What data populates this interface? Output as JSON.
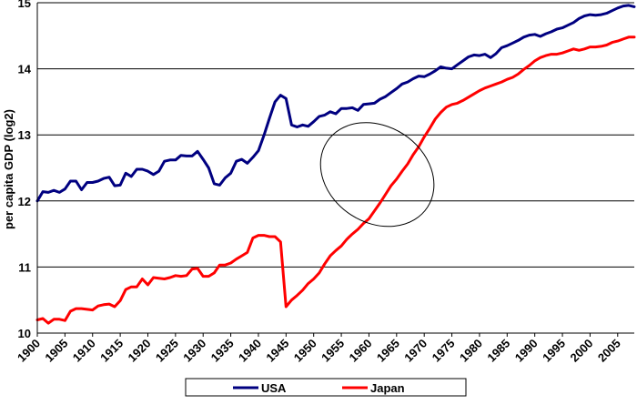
{
  "chart_data": {
    "type": "line",
    "title": "",
    "xlabel": "",
    "ylabel": "per capita GDP (log2)",
    "xlim": [
      1900,
      2008
    ],
    "ylim": [
      10,
      15
    ],
    "grid": true,
    "legend_position": "bottom",
    "x_ticks": [
      1900,
      1905,
      1910,
      1915,
      1920,
      1925,
      1930,
      1935,
      1940,
      1945,
      1950,
      1955,
      1960,
      1965,
      1970,
      1975,
      1980,
      1985,
      1990,
      1995,
      2000,
      2005
    ],
    "x_tick_labels": [
      "1900",
      "1905",
      "1910",
      "1915",
      "1920",
      "1925",
      "1930",
      "1935",
      "1940",
      "1945",
      "1950",
      "1955",
      "1960",
      "1965",
      "1970",
      "1975",
      "1980",
      "1985",
      "1990",
      "1995",
      "2000",
      "2005"
    ],
    "y_ticks": [
      10,
      11,
      12,
      13,
      14,
      15
    ],
    "y_tick_labels": [
      "10",
      "11",
      "12",
      "13",
      "14",
      "15"
    ],
    "series": [
      {
        "name": "USA",
        "color": "#000080",
        "x": [
          1900,
          1901,
          1902,
          1903,
          1904,
          1905,
          1906,
          1907,
          1908,
          1909,
          1910,
          1911,
          1912,
          1913,
          1914,
          1915,
          1916,
          1917,
          1918,
          1919,
          1920,
          1921,
          1922,
          1923,
          1924,
          1925,
          1926,
          1927,
          1928,
          1929,
          1930,
          1931,
          1932,
          1933,
          1934,
          1935,
          1936,
          1937,
          1938,
          1939,
          1940,
          1941,
          1942,
          1943,
          1944,
          1945,
          1946,
          1947,
          1948,
          1949,
          1950,
          1951,
          1952,
          1953,
          1954,
          1955,
          1956,
          1957,
          1958,
          1959,
          1960,
          1961,
          1962,
          1963,
          1964,
          1965,
          1966,
          1967,
          1968,
          1969,
          1970,
          1971,
          1972,
          1973,
          1974,
          1975,
          1976,
          1977,
          1978,
          1979,
          1980,
          1981,
          1982,
          1983,
          1984,
          1985,
          1986,
          1987,
          1988,
          1989,
          1990,
          1991,
          1992,
          1993,
          1994,
          1995,
          1996,
          1997,
          1998,
          1999,
          2000,
          2001,
          2002,
          2003,
          2004,
          2005,
          2006,
          2007,
          2008
        ],
        "values": [
          12.0,
          12.14,
          12.13,
          12.16,
          12.13,
          12.18,
          12.3,
          12.3,
          12.17,
          12.28,
          12.28,
          12.3,
          12.34,
          12.36,
          12.23,
          12.24,
          12.42,
          12.37,
          12.48,
          12.48,
          12.45,
          12.4,
          12.45,
          12.6,
          12.62,
          12.62,
          12.69,
          12.68,
          12.68,
          12.75,
          12.63,
          12.5,
          12.26,
          12.24,
          12.35,
          12.42,
          12.6,
          12.63,
          12.57,
          12.66,
          12.76,
          12.99,
          13.25,
          13.5,
          13.6,
          13.55,
          13.15,
          13.12,
          13.15,
          13.13,
          13.2,
          13.28,
          13.3,
          13.35,
          13.32,
          13.4,
          13.4,
          13.41,
          13.37,
          13.46,
          13.47,
          13.48,
          13.54,
          13.58,
          13.64,
          13.7,
          13.77,
          13.8,
          13.85,
          13.89,
          13.88,
          13.92,
          13.97,
          14.03,
          14.01,
          14.0,
          14.06,
          14.12,
          14.18,
          14.21,
          14.2,
          14.22,
          14.17,
          14.23,
          14.32,
          14.35,
          14.39,
          14.43,
          14.48,
          14.51,
          14.52,
          14.49,
          14.53,
          14.56,
          14.6,
          14.62,
          14.66,
          14.7,
          14.76,
          14.8,
          14.82,
          14.81,
          14.82,
          14.84,
          14.88,
          14.92,
          14.95,
          14.96,
          14.94
        ]
      },
      {
        "name": "Japan",
        "color": "#ff0000",
        "x": [
          1900,
          1901,
          1902,
          1903,
          1904,
          1905,
          1906,
          1907,
          1908,
          1909,
          1910,
          1911,
          1912,
          1913,
          1914,
          1915,
          1916,
          1917,
          1918,
          1919,
          1920,
          1921,
          1922,
          1923,
          1924,
          1925,
          1926,
          1927,
          1928,
          1929,
          1930,
          1931,
          1932,
          1933,
          1934,
          1935,
          1936,
          1937,
          1938,
          1939,
          1940,
          1941,
          1942,
          1943,
          1944,
          1945,
          1946,
          1947,
          1948,
          1949,
          1950,
          1951,
          1952,
          1953,
          1954,
          1955,
          1956,
          1957,
          1958,
          1959,
          1960,
          1961,
          1962,
          1963,
          1964,
          1965,
          1966,
          1967,
          1968,
          1969,
          1970,
          1971,
          1972,
          1973,
          1974,
          1975,
          1976,
          1977,
          1978,
          1979,
          1980,
          1981,
          1982,
          1983,
          1984,
          1985,
          1986,
          1987,
          1988,
          1989,
          1990,
          1991,
          1992,
          1993,
          1994,
          1995,
          1996,
          1997,
          1998,
          1999,
          2000,
          2001,
          2002,
          2003,
          2004,
          2005,
          2006,
          2007,
          2008
        ],
        "values": [
          10.2,
          10.22,
          10.15,
          10.21,
          10.21,
          10.19,
          10.33,
          10.37,
          10.37,
          10.36,
          10.35,
          10.41,
          10.43,
          10.44,
          10.4,
          10.49,
          10.66,
          10.7,
          10.7,
          10.82,
          10.73,
          10.84,
          10.83,
          10.82,
          10.84,
          10.87,
          10.86,
          10.87,
          10.97,
          10.98,
          10.86,
          10.86,
          10.91,
          11.03,
          11.03,
          11.06,
          11.12,
          11.17,
          11.22,
          11.44,
          11.48,
          11.48,
          11.46,
          11.46,
          11.38,
          10.4,
          10.5,
          10.57,
          10.65,
          10.75,
          10.82,
          10.91,
          11.05,
          11.17,
          11.25,
          11.32,
          11.42,
          11.5,
          11.57,
          11.66,
          11.73,
          11.85,
          11.97,
          12.1,
          12.23,
          12.33,
          12.45,
          12.56,
          12.7,
          12.82,
          12.97,
          13.1,
          13.24,
          13.34,
          13.42,
          13.46,
          13.48,
          13.52,
          13.57,
          13.62,
          13.67,
          13.71,
          13.74,
          13.77,
          13.8,
          13.84,
          13.87,
          13.92,
          13.99,
          14.05,
          14.12,
          14.17,
          14.2,
          14.22,
          14.22,
          14.24,
          14.27,
          14.3,
          14.28,
          14.3,
          14.33,
          14.33,
          14.34,
          14.36,
          14.4,
          14.42,
          14.45,
          14.48,
          14.48
        ]
      }
    ],
    "annotations": [
      {
        "type": "ellipse",
        "cx_year": 1961.5,
        "cy_value": 12.4,
        "rx_years": 8.7,
        "ry_value": 1.65,
        "angle_deg": -57,
        "note": ""
      }
    ]
  }
}
